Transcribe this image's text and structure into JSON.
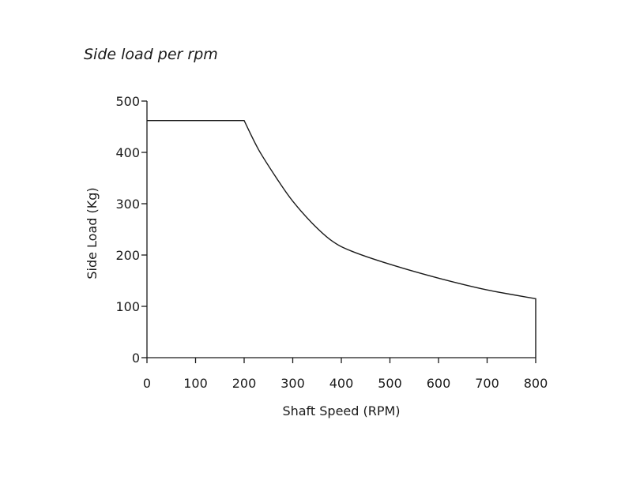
{
  "chart_data": {
    "type": "line",
    "title": "Side load per rpm",
    "xlabel": "Shaft Speed (RPM)",
    "ylabel": "Side Load (Kg)",
    "xlim": [
      0,
      800
    ],
    "ylim": [
      0,
      500
    ],
    "x_ticks": [
      0,
      100,
      200,
      300,
      400,
      500,
      600,
      700,
      800
    ],
    "y_ticks": [
      0,
      100,
      200,
      300,
      400,
      500
    ],
    "grid": false,
    "legend": "none",
    "line_color": "#1a1a1a",
    "series": [
      {
        "x": [
          0,
          195,
          200,
          230,
          270,
          300,
          340,
          380,
          420,
          500,
          600,
          700,
          800,
          800
        ],
        "y": [
          462,
          462,
          462,
          405,
          345,
          305,
          262,
          228,
          208,
          182,
          155,
          132,
          115,
          0
        ]
      }
    ]
  }
}
